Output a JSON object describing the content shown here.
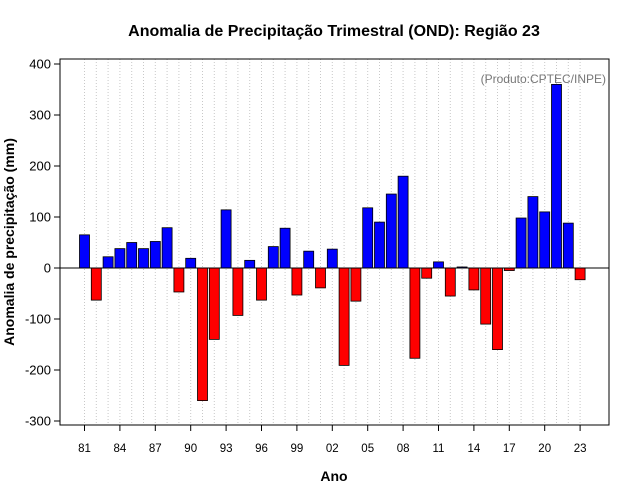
{
  "chart_data": {
    "type": "bar",
    "title": "Anomalia de Precipitação Trimestral (OND): Região 23",
    "xlabel": "Ano",
    "ylabel": "Anomalia de precipitação (mm)",
    "credit": "(Produto:CPTEC/INPE)",
    "ylim": [
      -310,
      410
    ],
    "yticks": [
      400,
      300,
      200,
      100,
      0,
      -100,
      -200,
      -300
    ],
    "xtick_labels": [
      "81",
      "84",
      "87",
      "90",
      "93",
      "96",
      "99",
      "02",
      "05",
      "08",
      "11",
      "14",
      "17",
      "20",
      "23"
    ],
    "xtick_years": [
      1981,
      1984,
      1987,
      1990,
      1993,
      1996,
      1999,
      2002,
      2005,
      2008,
      2011,
      2014,
      2017,
      2020,
      2023
    ],
    "years": [
      1981,
      1982,
      1983,
      1984,
      1985,
      1986,
      1987,
      1988,
      1989,
      1990,
      1991,
      1992,
      1993,
      1994,
      1995,
      1996,
      1997,
      1998,
      1999,
      2000,
      2001,
      2002,
      2003,
      2004,
      2005,
      2006,
      2007,
      2008,
      2009,
      2010,
      2011,
      2012,
      2013,
      2014,
      2015,
      2016,
      2017,
      2018,
      2019,
      2020,
      2021,
      2022,
      2023
    ],
    "values": [
      65,
      -63,
      22,
      38,
      50,
      38,
      52,
      79,
      -47,
      19,
      -260,
      -140,
      114,
      -93,
      15,
      -63,
      42,
      78,
      -53,
      33,
      -39,
      37,
      -191,
      -65,
      118,
      90,
      145,
      180,
      -177,
      -20,
      12,
      -55,
      2,
      -43,
      -110,
      -160,
      -5,
      98,
      140,
      110,
      360,
      88,
      -23
    ],
    "grid": true,
    "colors": {
      "positive": "#0000ff",
      "negative": "#ff0000",
      "zero_line": "#000000",
      "grid": "#c8c8c8"
    }
  }
}
